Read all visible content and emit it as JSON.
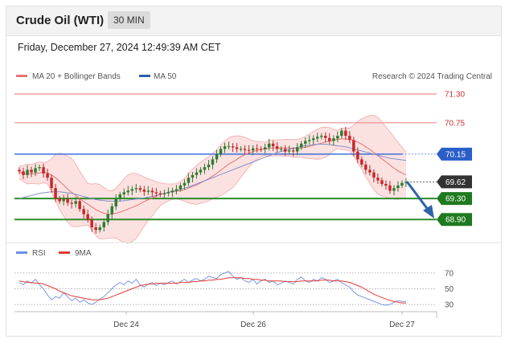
{
  "header": {
    "title": "Crude Oil (WTI)",
    "interval": "30 MIN",
    "date": "Friday, December 27, 2024 12:49:39 AM CET"
  },
  "legend": {
    "bb_label": "MA 20 + Bollinger Bands",
    "ma50_label": "MA 50",
    "credit": "Research © 2024 Trading Central",
    "rsi_label": "RSI",
    "ma9_label": "9MA"
  },
  "colors": {
    "up": "#2e7d32",
    "down": "#c62828",
    "bands": "#f9c9c9",
    "ma20": "#e57373",
    "ma50": "#7e93c8",
    "pivot": "#3d6fe0",
    "support": "#2e8b2e",
    "resistance": "#f28b8b",
    "rsi": "#6f8ee6",
    "rsi_ma": "#e53935",
    "arrow": "#2f63a8"
  },
  "chart_data": [
    {
      "type": "candlestick",
      "title": "Crude Oil (WTI)",
      "ylim": [
        68.55,
        71.5
      ],
      "x_ticks": [
        "Dec 24",
        "Dec 26",
        "Dec 27"
      ],
      "levels": [
        {
          "value": 71.3,
          "label": "71.30",
          "kind": "resistance"
        },
        {
          "value": 70.75,
          "label": "70.75",
          "kind": "resistance"
        },
        {
          "value": 70.15,
          "label": "70.15",
          "kind": "pivot"
        },
        {
          "value": 69.62,
          "label": "69.62",
          "kind": "last"
        },
        {
          "value": 69.3,
          "label": "69.30",
          "kind": "support"
        },
        {
          "value": 68.9,
          "label": "68.90",
          "kind": "support"
        }
      ],
      "close": [
        69.82,
        69.75,
        69.85,
        69.8,
        69.88,
        69.9,
        69.78,
        69.7,
        69.5,
        69.3,
        69.25,
        69.3,
        69.22,
        69.2,
        69.25,
        69.1,
        69.0,
        68.9,
        68.75,
        68.7,
        68.75,
        68.85,
        69.0,
        69.15,
        69.3,
        69.38,
        69.42,
        69.45,
        69.48,
        69.5,
        69.47,
        69.43,
        69.45,
        69.42,
        69.4,
        69.38,
        69.4,
        69.42,
        69.45,
        69.48,
        69.55,
        69.6,
        69.7,
        69.75,
        69.8,
        69.85,
        69.9,
        69.95,
        70.05,
        70.15,
        70.25,
        70.3,
        70.3,
        70.28,
        70.25,
        70.25,
        70.23,
        70.22,
        70.26,
        70.25,
        70.24,
        70.28,
        70.35,
        70.3,
        70.25,
        70.25,
        70.2,
        70.22,
        70.2,
        70.28,
        70.35,
        70.4,
        70.42,
        70.45,
        70.48,
        70.5,
        70.46,
        70.4,
        70.45,
        70.5,
        70.6,
        70.5,
        70.42,
        70.2,
        70.05,
        69.95,
        69.85,
        69.8,
        69.7,
        69.65,
        69.58,
        69.55,
        69.45,
        69.5,
        69.55,
        69.6,
        69.62
      ],
      "ma20": [
        69.8,
        69.78,
        69.77,
        69.77,
        69.78,
        69.79,
        69.8,
        69.79,
        69.75,
        69.7,
        69.63,
        69.56,
        69.48,
        69.42,
        69.36,
        69.3,
        69.24,
        69.19,
        69.14,
        69.09,
        69.05,
        69.02,
        69.0,
        69.0,
        69.02,
        69.04,
        69.07,
        69.1,
        69.13,
        69.16,
        69.2,
        69.24,
        69.28,
        69.31,
        69.35,
        69.38,
        69.4,
        69.42,
        69.43,
        69.44,
        69.45,
        69.47,
        69.5,
        69.53,
        69.56,
        69.6,
        69.64,
        69.68,
        69.73,
        69.78,
        69.84,
        69.9,
        69.96,
        70.0,
        70.05,
        70.1,
        70.14,
        70.17,
        70.2,
        70.22,
        70.24,
        70.25,
        70.26,
        70.27,
        70.27,
        70.27,
        70.27,
        70.27,
        70.26,
        70.26,
        70.27,
        70.28,
        70.3,
        70.32,
        70.34,
        70.36,
        70.38,
        70.4,
        70.42,
        70.43,
        70.44,
        70.44,
        70.43,
        70.41,
        70.38,
        70.34,
        70.29,
        70.24,
        70.18,
        70.12,
        70.06,
        70.0,
        69.94,
        69.88,
        69.83,
        69.79,
        69.75
      ],
      "ma50": [
        69.3,
        69.32,
        69.34,
        69.36,
        69.38,
        69.4,
        69.41,
        69.42,
        69.43,
        69.43,
        69.43,
        69.42,
        69.41,
        69.4,
        69.38,
        69.36,
        69.34,
        69.32,
        69.3,
        69.28,
        69.27,
        69.26,
        69.25,
        69.25,
        69.25,
        69.25,
        69.26,
        69.27,
        69.28,
        69.29,
        69.3,
        69.31,
        69.33,
        69.34,
        69.36,
        69.38,
        69.4,
        69.42,
        69.44,
        69.46,
        69.48,
        69.5,
        69.52,
        69.55,
        69.58,
        69.61,
        69.64,
        69.67,
        69.7,
        69.73,
        69.76,
        69.79,
        69.82,
        69.85,
        69.88,
        69.91,
        69.94,
        69.97,
        70.0,
        70.03,
        70.06,
        70.09,
        70.12,
        70.15,
        70.18,
        70.2,
        70.22,
        70.24,
        70.26,
        70.28,
        70.3,
        70.31,
        70.32,
        70.33,
        70.34,
        70.34,
        70.34,
        70.33,
        70.32,
        70.31,
        70.3,
        70.29,
        70.27,
        70.25,
        70.23,
        70.21,
        70.19,
        70.17,
        70.15,
        70.13,
        70.11,
        70.09,
        70.07,
        70.06,
        70.05,
        70.04,
        70.03
      ],
      "series": [
        {
          "name": "MA 20 + Bollinger Bands"
        },
        {
          "name": "MA 50"
        }
      ]
    },
    {
      "type": "line",
      "ylim": [
        25,
        78
      ],
      "y_ticks": [
        70,
        50,
        30
      ],
      "series": [
        {
          "name": "RSI",
          "values": [
            58,
            55,
            60,
            57,
            62,
            55,
            50,
            42,
            36,
            40,
            38,
            45,
            40,
            35,
            38,
            33,
            36,
            32,
            30,
            33,
            37,
            40,
            45,
            50,
            55,
            58,
            55,
            60,
            57,
            62,
            55,
            52,
            56,
            58,
            54,
            57,
            55,
            58,
            60,
            56,
            59,
            62,
            58,
            61,
            63,
            60,
            62,
            66,
            64,
            63,
            68,
            70,
            72,
            66,
            62,
            64,
            60,
            58,
            62,
            56,
            60,
            62,
            58,
            60,
            55,
            57,
            60,
            58,
            56,
            62,
            65,
            60,
            58,
            62,
            60,
            64,
            62,
            58,
            60,
            62,
            58,
            55,
            52,
            46,
            42,
            40,
            38,
            36,
            34,
            32,
            30,
            29,
            30,
            33,
            35,
            34,
            34
          ]
        },
        {
          "name": "9MA",
          "values": [
            60,
            59,
            58,
            58,
            57,
            57,
            56,
            54,
            52,
            50,
            47,
            45,
            43,
            41,
            40,
            39,
            38,
            37,
            36,
            36,
            36,
            37,
            38,
            40,
            42,
            44,
            46,
            48,
            50,
            52,
            54,
            55,
            56,
            56,
            57,
            57,
            57,
            57,
            57,
            57,
            58,
            58,
            58,
            59,
            59,
            60,
            60,
            61,
            61,
            62,
            62,
            63,
            64,
            64,
            64,
            64,
            63,
            63,
            62,
            62,
            61,
            61,
            60,
            60,
            60,
            60,
            59,
            59,
            59,
            59,
            60,
            60,
            60,
            60,
            60,
            61,
            61,
            61,
            60,
            60,
            60,
            59,
            58,
            56,
            54,
            52,
            49,
            46,
            43,
            41,
            39,
            37,
            35,
            34,
            33,
            32,
            32
          ]
        }
      ]
    }
  ]
}
